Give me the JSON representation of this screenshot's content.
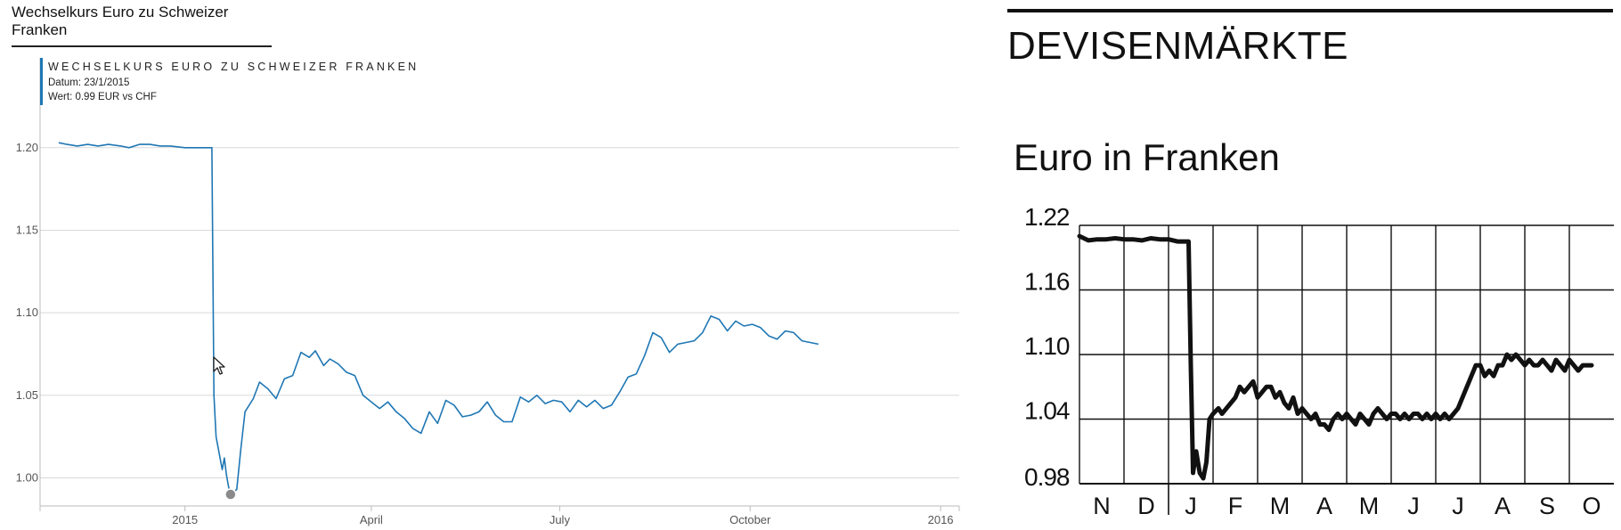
{
  "page_tab": {
    "label": "Wechselkurs Euro zu Schweizer Franken"
  },
  "tooltip": {
    "title": "WECHSELKURS EURO ZU SCHWEIZER FRANKEN",
    "date_line": "Datum: 23/1/2015",
    "value_line": "Wert: 0.99 EUR vs CHF"
  },
  "right_panel": {
    "section_heading": "DEVISENMÄRKTE"
  },
  "chart_data": [
    {
      "type": "line",
      "xlabel": "",
      "ylabel": "",
      "x_ticks": [
        {
          "label": "2015",
          "date": "2015-01-01"
        },
        {
          "label": "April",
          "date": "2015-04-01"
        },
        {
          "label": "July",
          "date": "2015-07-01"
        },
        {
          "label": "October",
          "date": "2015-10-01"
        },
        {
          "label": "2016",
          "date": "2016-01-01"
        }
      ],
      "y_ticks": [
        "1.00",
        "1.05",
        "1.10",
        "1.15",
        "1.20"
      ],
      "xlim": [
        "2014-10-23",
        "2016-01-10"
      ],
      "ylim": [
        0.983,
        1.222
      ],
      "grid": true,
      "color": "#1f77b4",
      "highlight": {
        "x": "2015-01-23",
        "y": 0.99
      },
      "series": [
        {
          "x": [
            "2014-11-01",
            "2014-11-05",
            "2014-11-10",
            "2014-11-15",
            "2014-11-20",
            "2014-11-25",
            "2014-12-01",
            "2014-12-05",
            "2014-12-10",
            "2014-12-15",
            "2014-12-20",
            "2014-12-25",
            "2015-01-01",
            "2015-01-08",
            "2015-01-14",
            "2015-01-15",
            "2015-01-16",
            "2015-01-19",
            "2015-01-20",
            "2015-01-21",
            "2015-01-22",
            "2015-01-23",
            "2015-01-26",
            "2015-01-28",
            "2015-01-30",
            "2015-02-03",
            "2015-02-06",
            "2015-02-10",
            "2015-02-14",
            "2015-02-18",
            "2015-02-22",
            "2015-02-26",
            "2015-03-02",
            "2015-03-05",
            "2015-03-09",
            "2015-03-12",
            "2015-03-16",
            "2015-03-20",
            "2015-03-24",
            "2015-03-28",
            "2015-04-01",
            "2015-04-05",
            "2015-04-09",
            "2015-04-13",
            "2015-04-17",
            "2015-04-21",
            "2015-04-25",
            "2015-04-29",
            "2015-05-03",
            "2015-05-07",
            "2015-05-11",
            "2015-05-15",
            "2015-05-19",
            "2015-05-23",
            "2015-05-27",
            "2015-05-31",
            "2015-06-04",
            "2015-06-08",
            "2015-06-12",
            "2015-06-16",
            "2015-06-20",
            "2015-06-24",
            "2015-06-28",
            "2015-07-02",
            "2015-07-06",
            "2015-07-10",
            "2015-07-14",
            "2015-07-18",
            "2015-07-22",
            "2015-07-26",
            "2015-07-30",
            "2015-08-03",
            "2015-08-07",
            "2015-08-11",
            "2015-08-15",
            "2015-08-19",
            "2015-08-23",
            "2015-08-27",
            "2015-08-31",
            "2015-09-04",
            "2015-09-08",
            "2015-09-12",
            "2015-09-16",
            "2015-09-20",
            "2015-09-24",
            "2015-09-28",
            "2015-10-02",
            "2015-10-06",
            "2015-10-10",
            "2015-10-14",
            "2015-10-18",
            "2015-10-22",
            "2015-10-26",
            "2015-10-30",
            "2015-11-03"
          ],
          "values": [
            1.203,
            1.202,
            1.201,
            1.202,
            1.201,
            1.202,
            1.201,
            1.2,
            1.202,
            1.202,
            1.201,
            1.201,
            1.2,
            1.2,
            1.2,
            1.05,
            1.025,
            1.005,
            1.012,
            1.002,
            0.995,
            0.99,
            0.993,
            1.018,
            1.04,
            1.048,
            1.058,
            1.054,
            1.048,
            1.06,
            1.062,
            1.076,
            1.073,
            1.077,
            1.068,
            1.072,
            1.069,
            1.064,
            1.062,
            1.05,
            1.046,
            1.042,
            1.046,
            1.04,
            1.036,
            1.03,
            1.027,
            1.04,
            1.033,
            1.047,
            1.044,
            1.037,
            1.038,
            1.04,
            1.046,
            1.038,
            1.034,
            1.034,
            1.049,
            1.046,
            1.05,
            1.045,
            1.047,
            1.046,
            1.04,
            1.047,
            1.043,
            1.047,
            1.042,
            1.044,
            1.052,
            1.061,
            1.063,
            1.074,
            1.088,
            1.085,
            1.076,
            1.081,
            1.082,
            1.083,
            1.088,
            1.098,
            1.096,
            1.089,
            1.095,
            1.092,
            1.093,
            1.091,
            1.086,
            1.084,
            1.089,
            1.088,
            1.083,
            1.082,
            1.081
          ]
        }
      ]
    },
    {
      "type": "line",
      "title": "Euro in Franken",
      "xlabel": "",
      "ylabel": "",
      "categories": [
        "N",
        "D",
        "J",
        "F",
        "M",
        "A",
        "M",
        "J",
        "J",
        "A",
        "S",
        "O"
      ],
      "y_ticks": [
        "0.98",
        "1.04",
        "1.10",
        "1.16",
        "1.22"
      ],
      "ylim": [
        0.98,
        1.22
      ],
      "grid": true,
      "color": "#111111",
      "series": [
        {
          "x": [
            0,
            0.2,
            0.4,
            0.6,
            0.8,
            1.0,
            1.2,
            1.4,
            1.6,
            1.8,
            2.0,
            2.2,
            2.45,
            2.5,
            2.55,
            2.62,
            2.7,
            2.78,
            2.85,
            2.92,
            3.0,
            3.12,
            3.2,
            3.3,
            3.4,
            3.5,
            3.6,
            3.7,
            3.8,
            3.9,
            4.0,
            4.1,
            4.2,
            4.3,
            4.4,
            4.5,
            4.6,
            4.7,
            4.8,
            4.9,
            5.0,
            5.1,
            5.2,
            5.3,
            5.4,
            5.5,
            5.6,
            5.7,
            5.8,
            5.9,
            6.0,
            6.1,
            6.2,
            6.3,
            6.4,
            6.5,
            6.6,
            6.7,
            6.8,
            6.9,
            7.0,
            7.1,
            7.2,
            7.3,
            7.4,
            7.5,
            7.6,
            7.7,
            7.8,
            7.9,
            8.0,
            8.1,
            8.2,
            8.3,
            8.4,
            8.5,
            8.6,
            8.7,
            8.8,
            8.9,
            9.0,
            9.1,
            9.2,
            9.3,
            9.4,
            9.5,
            9.6,
            9.7,
            9.8,
            9.9,
            10.0,
            10.1,
            10.2,
            10.3,
            10.4,
            10.5,
            10.6,
            10.7,
            10.8,
            10.9,
            11.0,
            11.1,
            11.2,
            11.3,
            11.4,
            11.5
          ],
          "values": [
            1.21,
            1.206,
            1.207,
            1.207,
            1.208,
            1.207,
            1.207,
            1.206,
            1.208,
            1.207,
            1.207,
            1.205,
            1.205,
            1.09,
            0.99,
            1.01,
            0.99,
            0.985,
            1.0,
            1.04,
            1.045,
            1.05,
            1.045,
            1.05,
            1.055,
            1.06,
            1.07,
            1.065,
            1.07,
            1.075,
            1.06,
            1.065,
            1.07,
            1.07,
            1.06,
            1.065,
            1.055,
            1.05,
            1.06,
            1.045,
            1.05,
            1.045,
            1.04,
            1.045,
            1.035,
            1.035,
            1.03,
            1.04,
            1.045,
            1.04,
            1.045,
            1.04,
            1.035,
            1.045,
            1.04,
            1.035,
            1.045,
            1.05,
            1.045,
            1.04,
            1.045,
            1.045,
            1.04,
            1.045,
            1.04,
            1.045,
            1.045,
            1.04,
            1.045,
            1.04,
            1.045,
            1.04,
            1.045,
            1.04,
            1.045,
            1.05,
            1.06,
            1.07,
            1.08,
            1.09,
            1.09,
            1.08,
            1.085,
            1.08,
            1.09,
            1.09,
            1.1,
            1.095,
            1.1,
            1.095,
            1.09,
            1.095,
            1.09,
            1.09,
            1.095,
            1.09,
            1.085,
            1.095,
            1.09,
            1.085,
            1.095,
            1.09,
            1.085,
            1.09,
            1.09,
            1.09
          ]
        }
      ]
    }
  ]
}
